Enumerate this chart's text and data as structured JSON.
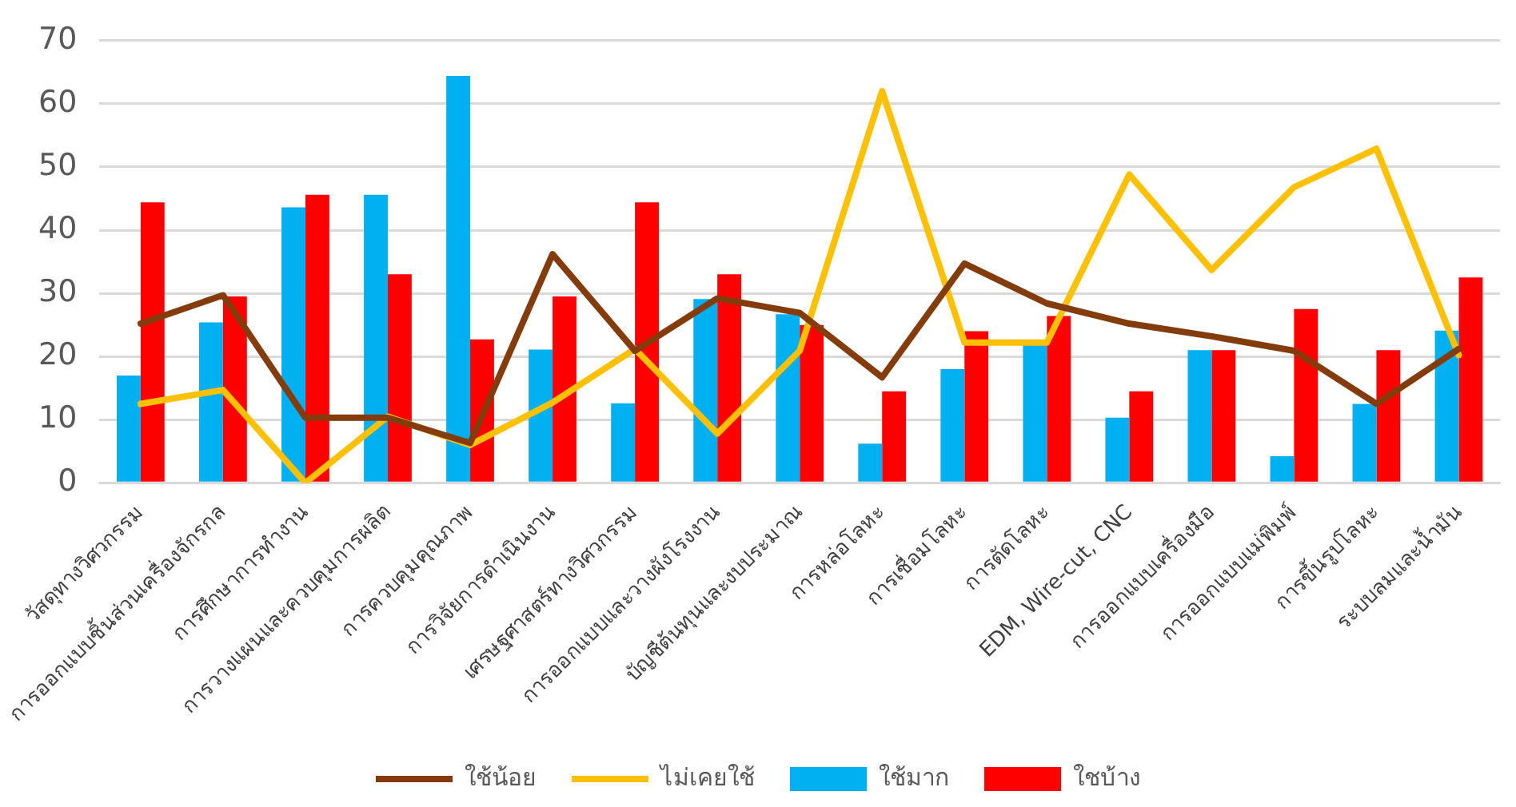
{
  "chart_data": {
    "type": "bar",
    "categories": [
      "วัสดุทางวิศวกรรม",
      "การออกแบบชิ้นส่วนเครื่องจักรกล",
      "การศึกษาการทำงาน",
      "การวางแผนและควบคุมการผลิต",
      "การควบคุมคุณภาพ",
      "การวิจัยการดำเนินงาน",
      "เศรษฐศาสตร์ทางวิศวกรรม",
      "การออกแบบและวางผังโรงงาน",
      "บัญชีต้นทุนและงบประมาณ",
      "การหล่อโลหะ",
      "การเชื่อมโลหะ",
      "การตัดโลหะ",
      "EDM, Wire-cut, CNC",
      "การออกแบบเครื่องมือ",
      "การออกแบบแม่พิมพ์",
      "การขึ้นรูปโลหะ",
      "ระบบลมและน้ำมัน"
    ],
    "series": [
      {
        "name": "ใช้มาก",
        "color": "#00b0f0",
        "values": [
          17,
          25.4,
          43.6,
          45.6,
          64.4,
          21.1,
          12.6,
          29.1,
          26.7,
          6.2,
          18,
          22.2,
          10.3,
          21,
          4.2,
          12.5,
          24.1
        ]
      },
      {
        "name": "ใชบ้าง",
        "color": "#ff0000",
        "values": [
          44.4,
          29.5,
          45.6,
          33,
          22.7,
          29.5,
          44.4,
          33,
          25,
          14.5,
          24,
          26.4,
          14.5,
          21,
          27.5,
          21,
          32.5
        ]
      },
      {
        "name": "ใช้น้อย",
        "color": "#843c0c",
        "type": "line",
        "values": [
          25.2,
          29.7,
          10.3,
          10.3,
          6.3,
          36.2,
          20.9,
          29.2,
          26.9,
          16.7,
          34.7,
          28.4,
          25.2,
          23.2,
          20.9,
          12.5,
          21.2
        ]
      },
      {
        "name": "ไม่เคยใช้",
        "color": "#ffc000",
        "type": "line",
        "values": [
          12.5,
          14.7,
          0,
          10.5,
          6,
          12.7,
          21.2,
          7.8,
          20.9,
          62,
          22.2,
          22.2,
          48.8,
          33.7,
          46.8,
          52.9,
          20.2
        ]
      }
    ],
    "ylim": [
      0,
      70
    ],
    "yticks": [
      0,
      10,
      20,
      30,
      40,
      50,
      60,
      70
    ],
    "grid": "y",
    "legend": "bottom",
    "marker": "none"
  }
}
